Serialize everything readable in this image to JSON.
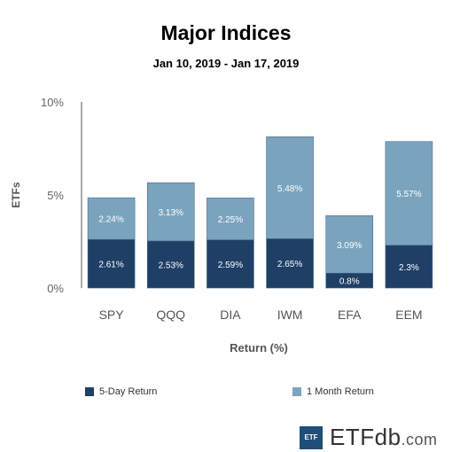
{
  "chart_data": {
    "type": "bar",
    "stacked": true,
    "title": "Major Indices",
    "subtitle": "Jan 10, 2019 - Jan 17, 2019",
    "xlabel": "Return (%)",
    "ylabel": "ETFs",
    "ylim": [
      0,
      10
    ],
    "yticks": [
      "0%",
      "5%",
      "10%"
    ],
    "categories": [
      "SPY",
      "QQQ",
      "DIA",
      "IWM",
      "EFA",
      "EEM"
    ],
    "series": [
      {
        "name": "5-Day Return",
        "color": "#1f3f66",
        "values": [
          2.61,
          2.53,
          2.59,
          2.65,
          0.8,
          2.3
        ],
        "labels": [
          "2.61%",
          "2.53%",
          "2.59%",
          "2.65%",
          "0.8%",
          "2.3%"
        ]
      },
      {
        "name": "1 Month Return",
        "color": "#7aa4be",
        "values": [
          2.24,
          3.13,
          2.25,
          5.48,
          3.09,
          5.57
        ],
        "labels": [
          "2.24%",
          "3.13%",
          "2.25%",
          "5.48%",
          "3.09%",
          "5.57%"
        ]
      }
    ],
    "legend": "bottom"
  },
  "logo": {
    "badge": "ETF",
    "name": "ETFdb",
    "suffix": ".com"
  }
}
